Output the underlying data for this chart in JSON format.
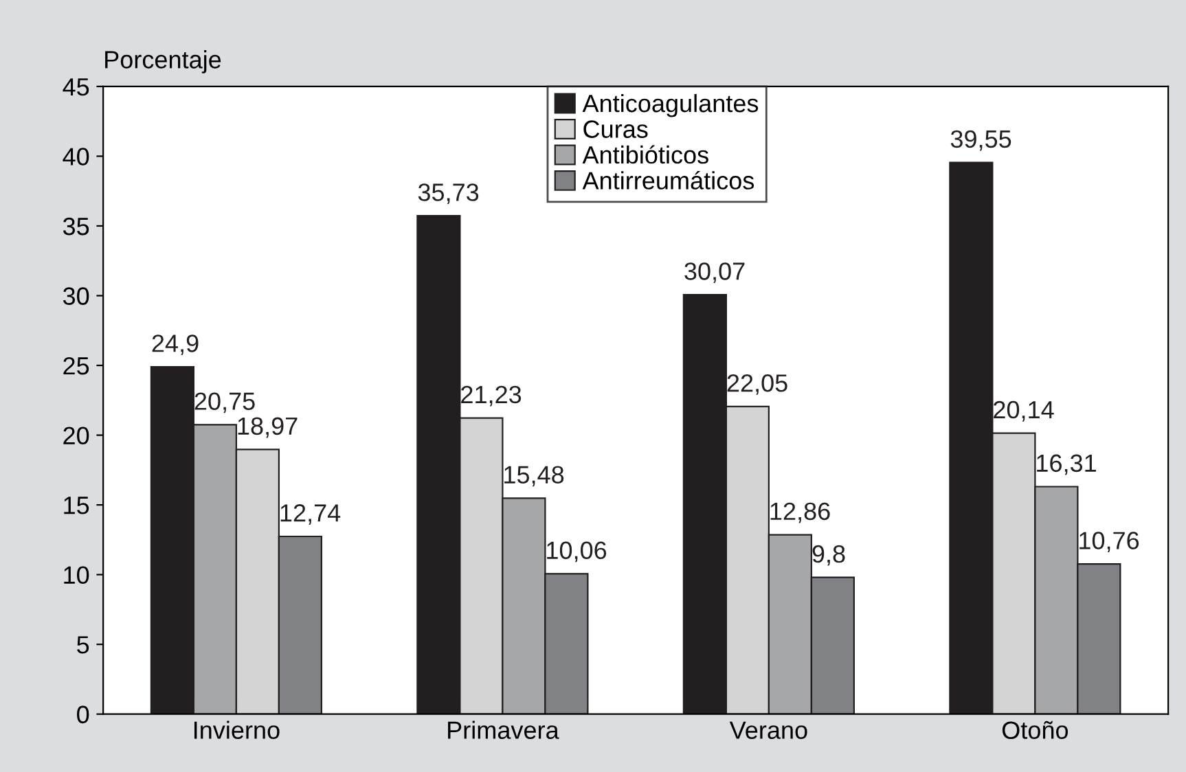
{
  "chart_data": {
    "type": "bar",
    "ylabel": "Porcentaje",
    "categories": [
      "Invierno",
      "Primavera",
      "Verano",
      "Otoño"
    ],
    "series": [
      {
        "name": "Anticoagulantes",
        "color": "#231f20",
        "values": [
          24.9,
          35.73,
          30.07,
          39.55
        ]
      },
      {
        "name": "Curas",
        "color": "#d4d4d4",
        "colors": [
          "#a6a7a9",
          "#d4d4d4",
          "#d4d4d4",
          "#d4d4d4"
        ],
        "values": [
          20.75,
          21.23,
          22.05,
          20.14
        ]
      },
      {
        "name": "Antibióticos",
        "color": "#a6a7a9",
        "colors": [
          "#d4d4d4",
          "#a6a7a9",
          "#a6a7a9",
          "#a6a7a9"
        ],
        "values": [
          18.97,
          15.48,
          12.86,
          16.31
        ]
      },
      {
        "name": "Antirreumáticos",
        "color": "#808285",
        "values": [
          12.74,
          10.06,
          9.8,
          10.76
        ]
      }
    ],
    "value_labels": [
      [
        "24,9",
        "35,73",
        "30,07",
        "39,55"
      ],
      [
        "20,75",
        "21,23",
        "22,05",
        "20,14"
      ],
      [
        "18,97",
        "15,48",
        "12,86",
        "16,31"
      ],
      [
        "12,74",
        "10,06",
        "9,8",
        "10,76"
      ]
    ],
    "ylim": [
      0,
      45
    ],
    "yticks": [
      0,
      5,
      10,
      15,
      20,
      25,
      30,
      35,
      40,
      45
    ],
    "grid": false,
    "legend": "top"
  }
}
